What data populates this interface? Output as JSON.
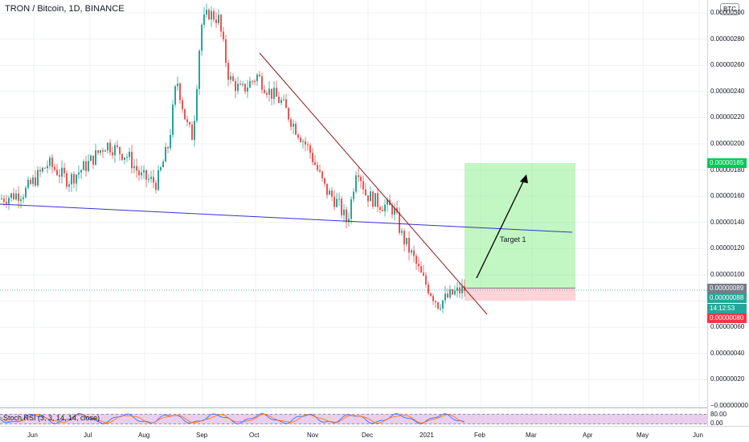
{
  "header": {
    "symbol_line": "TRON / Bitcoin, 1D, BINANCE",
    "currency_chip": "BTC"
  },
  "price_axis": {
    "ticks": [
      "0.00000300",
      "0.00000280",
      "0.00000260",
      "0.00000240",
      "0.00000220",
      "0.00000200",
      "0.00000180",
      "0.00000160",
      "0.00000140",
      "0.00000120",
      "0.00000100",
      "0.00000080",
      "0.00000060",
      "0.00000040",
      "0.00000020",
      "−0.00000000"
    ],
    "badges": {
      "target": "0.00000185",
      "last": "0.00000089",
      "current": "0.00000088",
      "countdown": "14:12:53",
      "stop": "0.00000080"
    }
  },
  "time_axis": {
    "labels": [
      "Jun",
      "Jul",
      "Aug",
      "Sep",
      "Oct",
      "Nov",
      "Dec",
      "2021",
      "Feb",
      "Mar",
      "Apr",
      "May",
      "Jun"
    ]
  },
  "annotations": {
    "target_label": "Target 1"
  },
  "indicator": {
    "label": "Stoch RSI (3, 3, 14, 14, close)",
    "axis_top": "80.00",
    "axis_bottom": "0.00"
  },
  "colors": {
    "up": "#26a69a",
    "down": "#ef5350",
    "target_zone": "#90ee90",
    "stop_zone": "#ffcdd2",
    "trendline": "#8b1a1a",
    "support_line": "#3333cc",
    "badge_green": "#00c853",
    "badge_teal": "#26a69a",
    "badge_red": "#f23645",
    "badge_gray": "#787b86"
  },
  "chart_data": {
    "type": "candlestick",
    "title": "TRON / Bitcoin, 1D, BINANCE",
    "ylim": [
      0,
      3e-06
    ],
    "x_labels": [
      "Jun",
      "Jul",
      "Aug",
      "Sep",
      "Oct",
      "Nov",
      "Dec",
      "2021",
      "Feb",
      "Mar",
      "Apr",
      "May",
      "Jun"
    ],
    "close_path_approx": [
      {
        "x": "Jun",
        "y": 1.58e-06
      },
      {
        "x": "Jul",
        "y": 1.75e-06
      },
      {
        "x": "Aug",
        "y": 1.68e-06
      },
      {
        "x": "Aug",
        "y": 2.55e-06
      },
      {
        "x": "Sep",
        "y": 3e-06
      },
      {
        "x": "Sep",
        "y": 2.4e-06
      },
      {
        "x": "Oct",
        "y": 2.55e-06
      },
      {
        "x": "Oct",
        "y": 2.4e-06
      },
      {
        "x": "Nov",
        "y": 1.75e-06
      },
      {
        "x": "Nov",
        "y": 1.45e-06
      },
      {
        "x": "Dec",
        "y": 1.8e-06
      },
      {
        "x": "Dec",
        "y": 1.5e-06
      },
      {
        "x": "2021",
        "y": 1.1e-06
      },
      {
        "x": "2021",
        "y": 8e-07
      },
      {
        "x": "2021",
        "y": 8.8e-07
      }
    ],
    "target_zone": [
      8.9e-07,
      1.85e-06
    ],
    "stop_zone": [
      8e-07,
      8.9e-07
    ]
  }
}
